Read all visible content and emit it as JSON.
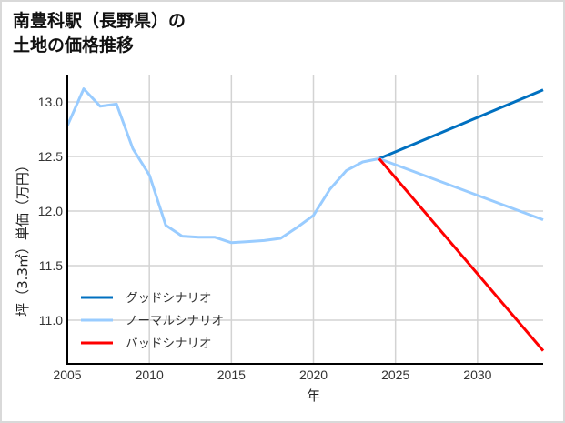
{
  "title_line1": "南豊科駅（長野県）の",
  "title_line2": "土地の価格推移",
  "chart_data": {
    "type": "line",
    "title": "南豊科駅（長野県）の土地の価格推移",
    "xlabel": "年",
    "ylabel": "坪（3.3㎡）単価（万円）",
    "xlim": [
      2005,
      2034
    ],
    "ylim": [
      10.6,
      13.25
    ],
    "xticks": [
      2005,
      2010,
      2015,
      2020,
      2025,
      2030
    ],
    "yticks": [
      11.0,
      11.5,
      12.0,
      12.5,
      13.0
    ],
    "grid": true,
    "legend_position": "lower left",
    "series": [
      {
        "name": "グッドシナリオ",
        "color": "#0070c0",
        "x": [
          2024,
          2034
        ],
        "values": [
          12.48,
          13.11
        ]
      },
      {
        "name": "ノーマルシナリオ",
        "color": "#99ccff",
        "x": [
          2005,
          2006,
          2007,
          2008,
          2009,
          2010,
          2011,
          2012,
          2013,
          2014,
          2015,
          2016,
          2017,
          2018,
          2019,
          2020,
          2021,
          2022,
          2023,
          2024,
          2034
        ],
        "values": [
          12.78,
          13.12,
          12.96,
          12.98,
          12.57,
          12.33,
          11.87,
          11.77,
          11.76,
          11.76,
          11.71,
          11.72,
          11.73,
          11.75,
          11.85,
          11.96,
          12.2,
          12.37,
          12.45,
          12.48,
          11.92
        ]
      },
      {
        "name": "バッドシナリオ",
        "color": "#ff0000",
        "x": [
          2024,
          2034
        ],
        "values": [
          12.48,
          10.72
        ]
      }
    ]
  }
}
